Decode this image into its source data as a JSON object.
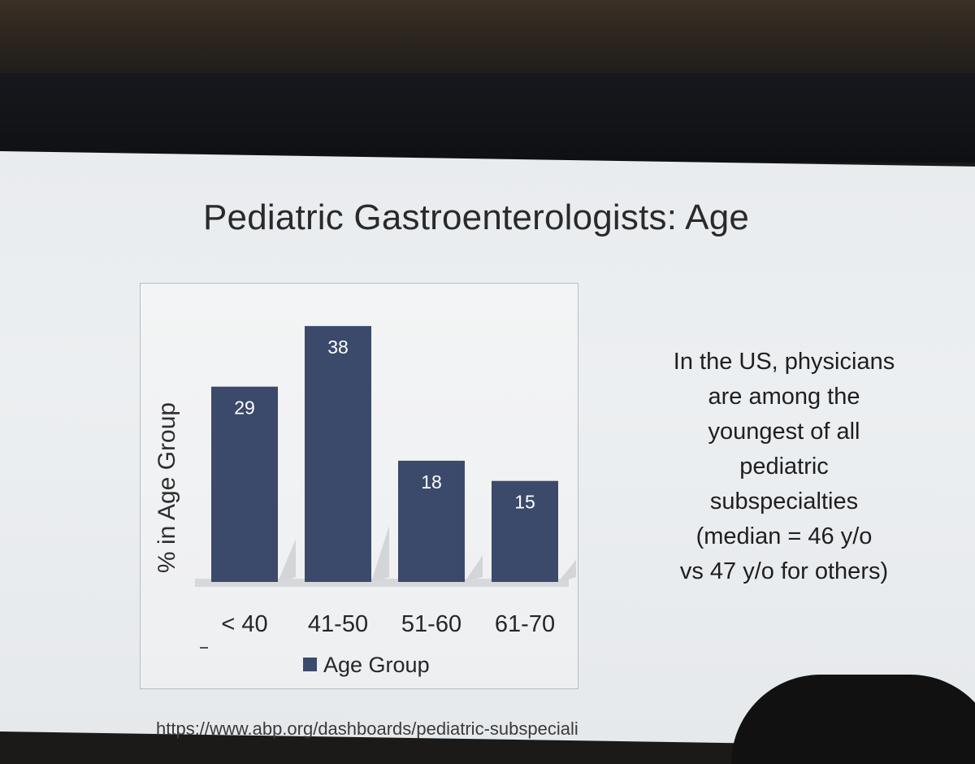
{
  "slide": {
    "title": "Pediatric Gastroenterologists: Age",
    "side_text_lines": [
      "In the US, physicians",
      "are among the",
      "youngest of all",
      "pediatric",
      "subspecialties",
      "(median = 46 y/o",
      "vs 47 y/o for others)"
    ],
    "source_url": "https://www.abp.org/dashboards/pediatric-subspeciali"
  },
  "chart_data": {
    "type": "bar",
    "categories": [
      "< 40",
      "41-50",
      "51-60",
      "61-70"
    ],
    "series": [
      {
        "name": "Age Group",
        "values": [
          29,
          38,
          18,
          15
        ]
      }
    ],
    "ylabel": "% in Age Group",
    "ylim": [
      0,
      42
    ],
    "grid": false,
    "legend": "bottom",
    "data_labels": true,
    "colors": {
      "bar": "#3b4a6b",
      "label": "#ffffff"
    }
  }
}
